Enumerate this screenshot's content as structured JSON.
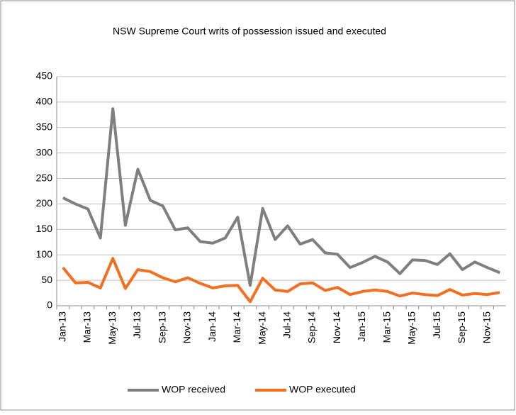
{
  "chart_data": {
    "type": "line",
    "title": "NSW Supreme Court writs of possession issued and executed",
    "categories": [
      "Jan-13",
      null,
      "Mar-13",
      null,
      "May-13",
      null,
      "Jul-13",
      null,
      "Sep-13",
      null,
      "Nov-13",
      null,
      "Jan-14",
      null,
      "Mar-14",
      null,
      "May-14",
      null,
      "Jul-14",
      null,
      "Sep-14",
      null,
      "Nov-14",
      null,
      "Jan-15",
      null,
      "Mar-15",
      null,
      "May-15",
      null,
      "Jul-15",
      null,
      "Sep-15",
      null,
      "Nov-15",
      null
    ],
    "series": [
      {
        "name": "WOP received",
        "color": "#7f7f7f",
        "values": [
          212,
          200,
          190,
          133,
          387,
          158,
          268,
          207,
          196,
          149,
          153,
          126,
          123,
          133,
          174,
          40,
          191,
          130,
          157,
          121,
          130,
          104,
          101,
          75,
          85,
          97,
          86,
          63,
          90,
          89,
          81,
          102,
          71,
          86,
          75,
          65
        ]
      },
      {
        "name": "WOP executed",
        "color": "#f36f21",
        "values": [
          75,
          45,
          46,
          35,
          93,
          34,
          71,
          67,
          55,
          47,
          55,
          44,
          35,
          39,
          40,
          8,
          54,
          31,
          28,
          43,
          45,
          30,
          36,
          22,
          28,
          31,
          28,
          19,
          25,
          22,
          20,
          32,
          21,
          24,
          22,
          26
        ]
      }
    ],
    "ylim": [
      0,
      450
    ],
    "yticks": [
      0,
      50,
      100,
      150,
      200,
      250,
      300,
      350,
      400,
      450
    ],
    "grid": true,
    "legend": "bottom"
  }
}
